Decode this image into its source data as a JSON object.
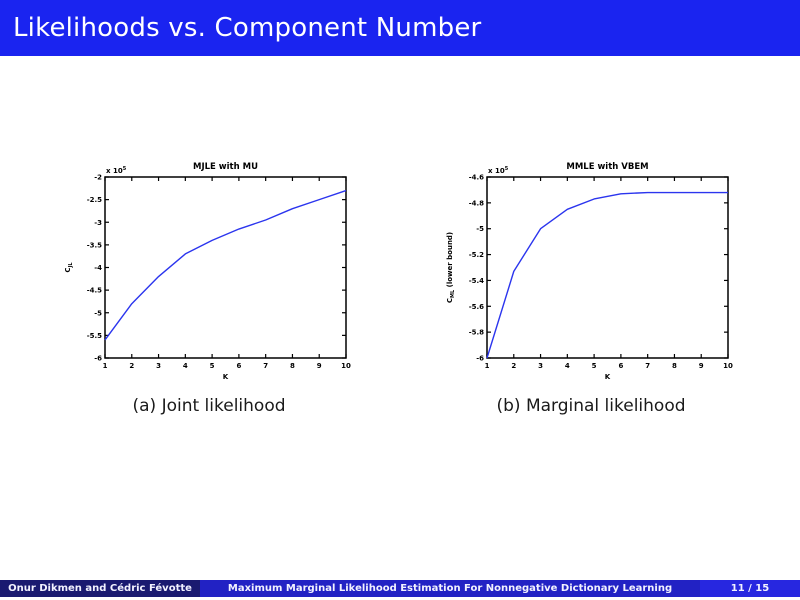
{
  "slide": {
    "title": "Likelihoods vs. Component Number"
  },
  "footer": {
    "authors": "Onur Dikmen and Cédric Févotte",
    "paper_title": "Maximum Marginal Likelihood Estimation For Nonnegative Dictionary Learning",
    "page": "11 / 15"
  },
  "colors": {
    "header_bg": "#1a24f0",
    "footer_left_bg": "#1a1a70",
    "footer_mid_bg": "#2222c4",
    "footer_right_bg": "#2727e0",
    "curve": "#2b35ee",
    "axis": "#000000"
  },
  "chart_data": [
    {
      "type": "line",
      "title": "MJLE with MU",
      "caption": "(a) Joint likelihood",
      "xlabel": "K",
      "ylabel": "C_JL (x 10^5)",
      "ylabel_parts": {
        "main": "C",
        "sub": "JL",
        "rest": ""
      },
      "exponent_base": "x 10",
      "exponent_power": "5",
      "x": [
        1,
        2,
        3,
        4,
        5,
        6,
        7,
        8,
        9,
        10
      ],
      "values": [
        -5.6,
        -4.8,
        -4.2,
        -3.7,
        -3.4,
        -3.15,
        -2.95,
        -2.7,
        -2.5,
        -2.3
      ],
      "xlim": [
        1,
        10
      ],
      "ylim": [
        -6,
        -2
      ],
      "xticks": [
        1,
        2,
        3,
        4,
        5,
        6,
        7,
        8,
        9,
        10
      ],
      "yticks": [
        -2,
        -2.5,
        -3,
        -3.5,
        -4,
        -4.5,
        -5,
        -5.5,
        -6
      ],
      "grid": "off",
      "legend": "none"
    },
    {
      "type": "line",
      "title": "MMLE with VBEM",
      "caption": "(b) Marginal likelihood",
      "xlabel": "K",
      "ylabel": "C_ML (lower bound) (x 10^5)",
      "ylabel_parts": {
        "main": "C",
        "sub": "ML",
        "rest": " (lower bound)"
      },
      "exponent_base": "x 10",
      "exponent_power": "5",
      "x": [
        1,
        2,
        3,
        4,
        5,
        6,
        7,
        8,
        9,
        10
      ],
      "values": [
        -6.0,
        -5.33,
        -5.0,
        -4.85,
        -4.77,
        -4.73,
        -4.72,
        -4.72,
        -4.72,
        -4.72
      ],
      "xlim": [
        1,
        10
      ],
      "ylim": [
        -6,
        -4.6
      ],
      "xticks": [
        1,
        2,
        3,
        4,
        5,
        6,
        7,
        8,
        9,
        10
      ],
      "yticks": [
        -4.6,
        -4.8,
        -5,
        -5.2,
        -5.4,
        -5.6,
        -5.8,
        -6
      ],
      "grid": "off",
      "legend": "none"
    }
  ]
}
